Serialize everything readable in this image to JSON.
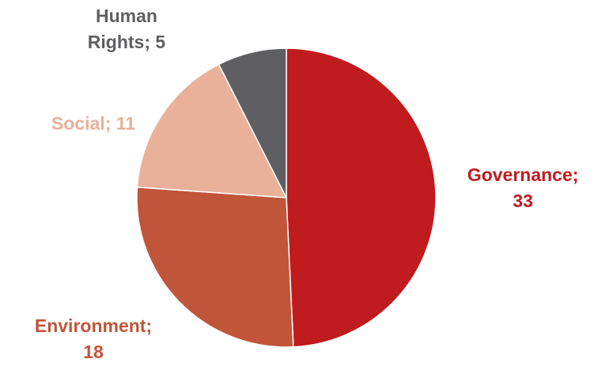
{
  "chart_data": {
    "type": "pie",
    "categories": [
      "Governance",
      "Environment",
      "Social",
      "Human Rights"
    ],
    "values": [
      33,
      18,
      11,
      5
    ],
    "colors": [
      "#c01b1e",
      "#c0553a",
      "#e9b09a",
      "#5f5f61"
    ],
    "data_labels": [
      {
        "line1": "Governance;",
        "line2": "33"
      },
      {
        "line1": "Environment;",
        "line2": "18"
      },
      {
        "line1": "Social; 11",
        "line2": ""
      },
      {
        "line1": "Human",
        "line2": "Rights; 5"
      }
    ],
    "title": "",
    "legend": "none",
    "start_angle_deg": 0,
    "direction": "clockwise"
  }
}
